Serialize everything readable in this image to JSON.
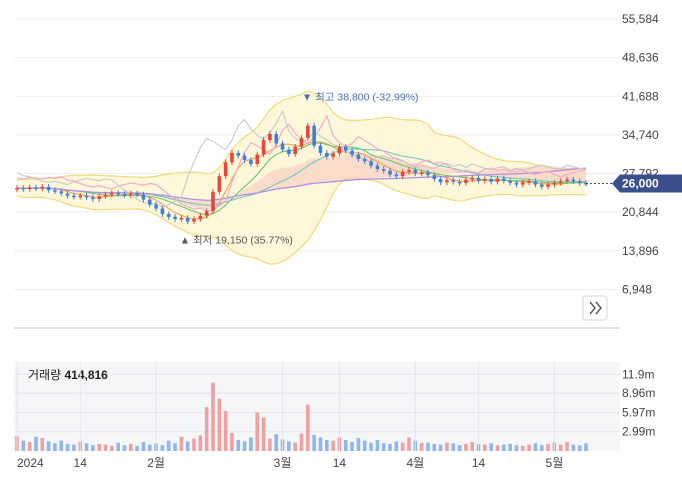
{
  "colors": {
    "up": "#e6463c",
    "down": "#3f7fd9",
    "bollinger_fill": "#fff6d6",
    "bollinger_line": "#f2d97a",
    "cloud_fill": "#f7c6c0",
    "ma_orange": "#f3a15a",
    "ma_green": "#6fc46f",
    "ma_teal": "#6fc9c0",
    "ma_purple": "#b48ee0",
    "ma_pink": "#f5a6c8",
    "ma_gray": "#c8c8c8",
    "price_tag": "#3b4f8f",
    "vol_up": "#f0a0a0",
    "vol_down": "#8fb8e8"
  },
  "expand_icon": "double-chevron-right-icon",
  "chart_data": {
    "type": "candlestick",
    "y_ticks": [
      "55,584",
      "48,636",
      "41,688",
      "34,740",
      "27,792",
      "20,844",
      "13,896",
      "6,948"
    ],
    "ylim": [
      0,
      55584
    ],
    "current_price_label": "26,000",
    "current_price": 26000,
    "x_tick_labels": [
      {
        "label": "2024",
        "index": 0
      },
      {
        "label": "14",
        "index": 10
      },
      {
        "label": "2월",
        "index": 22
      },
      {
        "label": "3월",
        "index": 42
      },
      {
        "label": "14",
        "index": 51
      },
      {
        "label": "4월",
        "index": 63
      },
      {
        "label": "14",
        "index": 73
      },
      {
        "label": "5월",
        "index": 85
      }
    ],
    "annotations": {
      "high_label": "최고",
      "high_value": "38,800",
      "high_pct": "(-32.99%)",
      "high_price": 38800,
      "high_index": 46,
      "low_label": "최저",
      "low_value": "19,150",
      "low_pct": "(35.77%)",
      "low_price": 19150,
      "low_index": 27
    },
    "close": [
      25200,
      25000,
      25300,
      25100,
      25400,
      24800,
      24600,
      24200,
      23800,
      23600,
      23800,
      23500,
      23200,
      23700,
      24000,
      24300,
      24100,
      23900,
      24200,
      24000,
      23100,
      22200,
      21500,
      20500,
      20000,
      19600,
      19800,
      19150,
      19600,
      20200,
      21000,
      24500,
      27300,
      29800,
      31500,
      31000,
      30200,
      29500,
      31200,
      33800,
      34900,
      33200,
      32100,
      31300,
      32600,
      34200,
      36400,
      32800,
      31500,
      30800,
      31400,
      32600,
      31900,
      31200,
      30400,
      30000,
      29200,
      28600,
      28300,
      27600,
      27300,
      28100,
      28400,
      27800,
      28000,
      27500,
      26800,
      26200,
      26600,
      26300,
      26100,
      26700,
      27000,
      26500,
      26800,
      26300,
      26900,
      26500,
      26100,
      25800,
      26200,
      26400,
      25800,
      25400,
      25800,
      26100,
      26400,
      26700,
      26400,
      26100,
      26000
    ],
    "volume": [
      2.3,
      1.6,
      1.4,
      2.2,
      2.0,
      1.5,
      1.2,
      1.6,
      1.1,
      1.0,
      1.4,
      1.2,
      0.9,
      1.1,
      1.0,
      0.8,
      1.3,
      0.9,
      1.1,
      0.8,
      1.4,
      1.0,
      1.2,
      0.9,
      1.6,
      1.2,
      2.2,
      1.5,
      1.9,
      2.4,
      6.8,
      10.6,
      8.1,
      6.2,
      2.8,
      1.7,
      1.5,
      2.1,
      6.0,
      5.2,
      1.9,
      2.6,
      1.8,
      1.5,
      1.3,
      2.7,
      7.2,
      2.5,
      2.1,
      1.7,
      1.6,
      2.1,
      1.7,
      1.4,
      2.0,
      1.6,
      1.3,
      1.7,
      1.2,
      1.1,
      1.5,
      1.3,
      2.1,
      1.6,
      1.2,
      1.3,
      1.1,
      1.0,
      1.3,
      1.2,
      0.9,
      1.1,
      1.4,
      1.1,
      1.0,
      1.2,
      0.9,
      1.0,
      1.1,
      0.9,
      0.8,
      1.0,
      1.2,
      0.9,
      1.1,
      1.3,
      1.0,
      1.4,
      1.0,
      0.9,
      1.2
    ],
    "volume_ticks": [
      "11.9m",
      "8.96m",
      "5.97m",
      "2.99m"
    ],
    "volume_tick_values": [
      11.9,
      8.96,
      5.97,
      2.99
    ],
    "volume_label": "거래량",
    "volume_value": "414,816"
  }
}
